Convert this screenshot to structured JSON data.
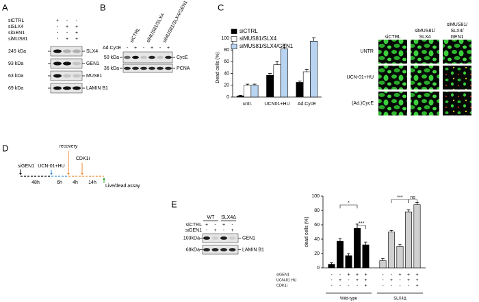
{
  "panel_labels": [
    "A",
    "B",
    "C",
    "D",
    "E"
  ],
  "blot_a": {
    "rows": [
      {
        "label": "siCTRL",
        "marks": [
          "+",
          "-",
          "-"
        ]
      },
      {
        "label": "siSLX4",
        "marks": [
          "-",
          "+",
          "+"
        ]
      },
      {
        "label": "siGEN1",
        "marks": [
          "-",
          "-",
          "+"
        ]
      },
      {
        "label": "siMUS81",
        "marks": [
          "-",
          "+",
          "+"
        ]
      }
    ],
    "bands": [
      {
        "marker": "245 kDa",
        "label": "SLX4"
      },
      {
        "marker": "93 kDa",
        "label": "GEN1"
      },
      {
        "marker": "63 kDa",
        "label": "MUS81"
      },
      {
        "marker": "69 kDa",
        "label": "LAMIN B1"
      }
    ]
  },
  "blot_b": {
    "lanes": [
      "siCTRL",
      "siMUS81/SLX4",
      "siMUS81/SLX4/GEN1"
    ],
    "treatment": {
      "label": "Ad.CycE",
      "marks": [
        "-",
        "+",
        "-",
        "+",
        "-",
        "+"
      ]
    },
    "bands": [
      {
        "marker": "50 kDa",
        "label": "CycE"
      },
      {
        "marker": "36 kDa",
        "label": "PCNA"
      }
    ]
  },
  "microscopy": {
    "columns": [
      [
        "siCTRL"
      ],
      [
        "siMUS81/",
        "SLX4"
      ],
      [
        "siMUS81/",
        "SLX4/",
        "GEN1"
      ]
    ],
    "rows": [
      "UNTR",
      "UCN-01+HU",
      "(Ad.)CycE"
    ]
  },
  "timeline": {
    "events": [
      "siGEN1",
      "UCN-01+HU",
      "recovery",
      "CDK1i",
      "Live/dead assay"
    ],
    "intervals": [
      "48h",
      "6h",
      "4h",
      "14h"
    ]
  },
  "blot_e": {
    "genotypes": [
      "WT",
      "SLX4Δ"
    ],
    "rows": [
      {
        "label": "siCTRL",
        "marks": [
          "+",
          "-",
          "+",
          "-"
        ]
      },
      {
        "label": "siGEN1",
        "marks": [
          "-",
          "+",
          "-",
          "+"
        ]
      }
    ],
    "bands": [
      {
        "marker": "103kDa",
        "label": "GEN1"
      },
      {
        "marker": "69kDa",
        "label": "LAMIN B1"
      }
    ]
  },
  "chart_data": [
    {
      "type": "bar",
      "ylabel": "Dead cells (%)",
      "categories": [
        "untr.",
        "UCN01+HU",
        "Ad.CycE"
      ],
      "series": [
        {
          "name": "siCTRL",
          "color": "#000000",
          "values": [
            2,
            37,
            25
          ],
          "errors": [
            1,
            3,
            2
          ]
        },
        {
          "name": "siMUS81/SLX4",
          "color": "#ffffff",
          "values": [
            20,
            55,
            43
          ],
          "errors": [
            2,
            6,
            4
          ]
        },
        {
          "name": "siMUS81/SLX4/GEN1",
          "color": "#b8d4f0",
          "values": [
            20,
            82,
            95
          ],
          "errors": [
            2,
            8,
            6
          ]
        }
      ],
      "ylim": [
        0,
        100
      ],
      "yticks": [
        0,
        20,
        40,
        60,
        80,
        100
      ],
      "legend": "upper left"
    },
    {
      "type": "bar",
      "ylabel": "dead cells (%)",
      "series": [
        {
          "name": "Wild-type",
          "color": "#000000",
          "values": [
            5,
            37,
            17,
            55,
            32
          ],
          "errors": [
            2,
            4,
            3,
            6,
            4
          ]
        },
        {
          "name": "SLX4Δ",
          "color": "#d0d0d0",
          "values": [
            10,
            50,
            30,
            78,
            88
          ],
          "errors": [
            3,
            2,
            3,
            3,
            3
          ]
        }
      ],
      "conditions": [
        {
          "name": "siGEN1",
          "marks": [
            "-",
            "-",
            "+",
            "+",
            "+"
          ]
        },
        {
          "name": "UCN-01 HU",
          "marks": [
            "-",
            "+",
            "-",
            "+",
            "+"
          ]
        },
        {
          "name": "CDK1i",
          "marks": [
            "-",
            "-",
            "-",
            "-",
            "+"
          ]
        }
      ],
      "annotations": [
        "*",
        "***",
        "***",
        "ns"
      ],
      "ylim": [
        0,
        100
      ],
      "yticks": [
        0,
        20,
        40,
        60,
        80,
        100
      ]
    }
  ]
}
